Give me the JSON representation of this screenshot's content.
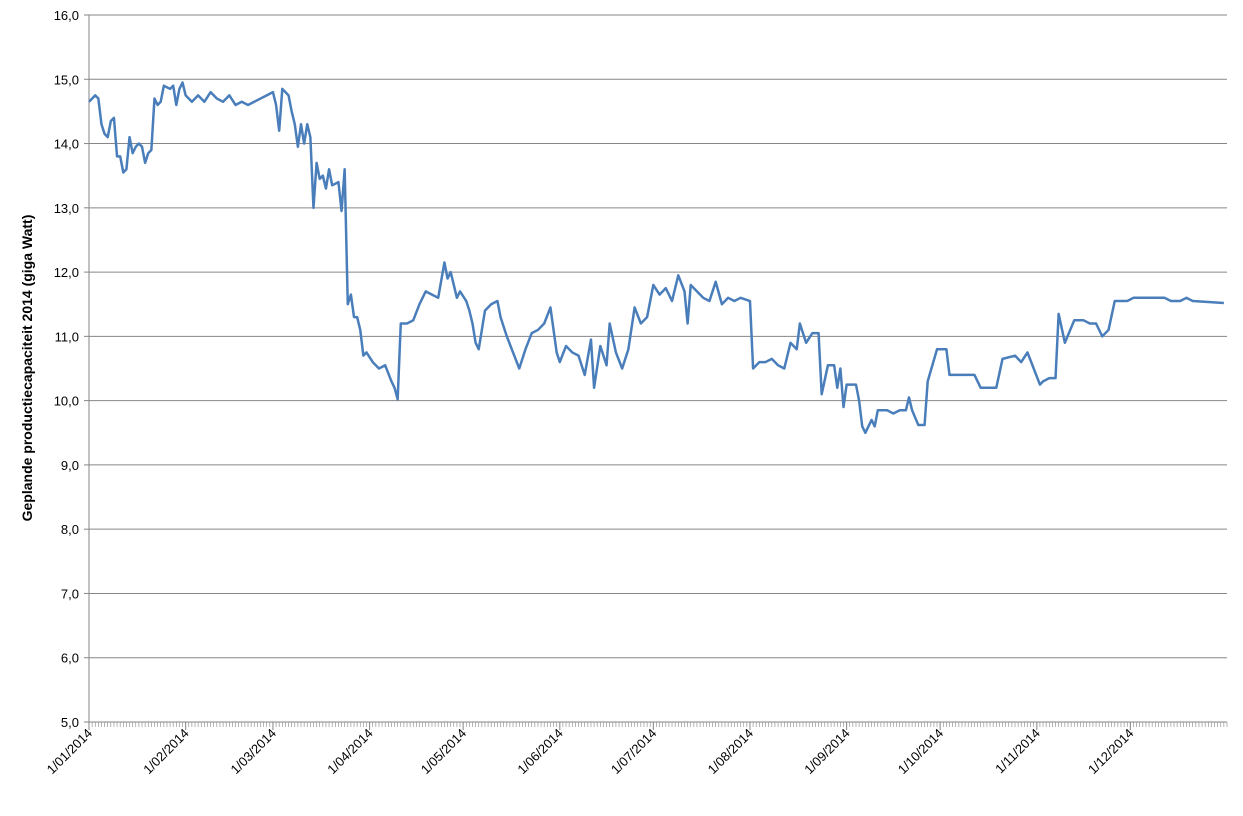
{
  "chart_data": {
    "type": "line",
    "y_label": "Geplande productiecapaciteit  2014 (giga Watt)",
    "xlim": [
      "1/01/2014",
      "1/01/2015"
    ],
    "xticks": [
      "1/01/2014",
      "1/02/2014",
      "1/03/2014",
      "1/04/2014",
      "1/05/2014",
      "1/06/2014",
      "1/07/2014",
      "1/08/2014",
      "1/09/2014",
      "1/10/2014",
      "1/11/2014",
      "1/12/2014"
    ],
    "ylim": [
      5,
      16
    ],
    "yticks": [
      {
        "value": 5,
        "label": "5,0"
      },
      {
        "value": 6,
        "label": "6,0"
      },
      {
        "value": 7,
        "label": "7,0"
      },
      {
        "value": 8,
        "label": "8,0"
      },
      {
        "value": 9,
        "label": "9,0"
      },
      {
        "value": 10,
        "label": "10,0"
      },
      {
        "value": 11,
        "label": "11,0"
      },
      {
        "value": 12,
        "label": "12,0"
      },
      {
        "value": 13,
        "label": "13,0"
      },
      {
        "value": 14,
        "label": "14,0"
      },
      {
        "value": 15,
        "label": "15,0"
      },
      {
        "value": 16,
        "label": "16,0"
      }
    ],
    "grid": true,
    "x": [
      "1/01/2014",
      "3/01/2014",
      "4/01/2014",
      "5/01/2014",
      "6/01/2014",
      "7/01/2014",
      "8/01/2014",
      "9/01/2014",
      "10/01/2014",
      "11/01/2014",
      "12/01/2014",
      "13/01/2014",
      "14/01/2014",
      "15/01/2014",
      "16/01/2014",
      "17/01/2014",
      "18/01/2014",
      "19/01/2014",
      "20/01/2014",
      "21/01/2014",
      "22/01/2014",
      "23/01/2014",
      "24/01/2014",
      "25/01/2014",
      "27/01/2014",
      "28/01/2014",
      "29/01/2014",
      "30/01/2014",
      "31/01/2014",
      "1/02/2014",
      "3/02/2014",
      "5/02/2014",
      "7/02/2014",
      "9/02/2014",
      "11/02/2014",
      "13/02/2014",
      "15/02/2014",
      "17/02/2014",
      "19/02/2014",
      "21/02/2014",
      "23/02/2014",
      "25/02/2014",
      "27/02/2014",
      "1/03/2014",
      "2/03/2014",
      "3/03/2014",
      "4/03/2014",
      "5/03/2014",
      "6/03/2014",
      "7/03/2014",
      "8/03/2014",
      "9/03/2014",
      "10/03/2014",
      "11/03/2014",
      "12/03/2014",
      "13/03/2014",
      "14/03/2014",
      "15/03/2014",
      "16/03/2014",
      "17/03/2014",
      "18/03/2014",
      "19/03/2014",
      "20/03/2014",
      "22/03/2014",
      "23/03/2014",
      "24/03/2014",
      "25/03/2014",
      "26/03/2014",
      "27/03/2014",
      "28/03/2014",
      "29/03/2014",
      "30/03/2014",
      "31/03/2014",
      "2/04/2014",
      "4/04/2014",
      "6/04/2014",
      "8/04/2014",
      "9/04/2014",
      "10/04/2014",
      "11/04/2014",
      "13/04/2014",
      "15/04/2014",
      "17/04/2014",
      "19/04/2014",
      "21/04/2014",
      "23/04/2014",
      "25/04/2014",
      "26/04/2014",
      "27/04/2014",
      "29/04/2014",
      "30/04/2014",
      "2/05/2014",
      "3/05/2014",
      "4/05/2014",
      "5/05/2014",
      "6/05/2014",
      "8/05/2014",
      "10/05/2014",
      "12/05/2014",
      "13/05/2014",
      "15/05/2014",
      "17/05/2014",
      "19/05/2014",
      "21/05/2014",
      "23/05/2014",
      "25/05/2014",
      "27/05/2014",
      "29/05/2014",
      "31/05/2014",
      "1/06/2014",
      "3/06/2014",
      "5/06/2014",
      "7/06/2014",
      "9/06/2014",
      "11/06/2014",
      "12/06/2014",
      "14/06/2014",
      "16/06/2014",
      "17/06/2014",
      "19/06/2014",
      "21/06/2014",
      "23/06/2014",
      "25/06/2014",
      "27/06/2014",
      "29/06/2014",
      "1/07/2014",
      "3/07/2014",
      "5/07/2014",
      "7/07/2014",
      "9/07/2014",
      "11/07/2014",
      "12/07/2014",
      "13/07/2014",
      "15/07/2014",
      "17/07/2014",
      "19/07/2014",
      "21/07/2014",
      "23/07/2014",
      "25/07/2014",
      "27/07/2014",
      "29/07/2014",
      "1/08/2014",
      "2/08/2014",
      "4/08/2014",
      "6/08/2014",
      "8/08/2014",
      "10/08/2014",
      "12/08/2014",
      "14/08/2014",
      "16/08/2014",
      "17/08/2014",
      "19/08/2014",
      "21/08/2014",
      "23/08/2014",
      "24/08/2014",
      "26/08/2014",
      "28/08/2014",
      "29/08/2014",
      "30/08/2014",
      "31/08/2014",
      "1/09/2014",
      "4/09/2014",
      "5/09/2014",
      "6/09/2014",
      "7/09/2014",
      "9/09/2014",
      "10/09/2014",
      "11/09/2014",
      "14/09/2014",
      "16/09/2014",
      "18/09/2014",
      "20/09/2014",
      "21/09/2014",
      "22/09/2014",
      "24/09/2014",
      "26/09/2014",
      "27/09/2014",
      "30/09/2014",
      "3/10/2014",
      "4/10/2014",
      "12/10/2014",
      "14/10/2014",
      "19/10/2014",
      "21/10/2014",
      "25/10/2014",
      "27/10/2014",
      "29/10/2014",
      "31/10/2014",
      "2/11/2014",
      "3/11/2014",
      "5/11/2014",
      "7/11/2014",
      "8/11/2014",
      "10/11/2014",
      "13/11/2014",
      "16/11/2014",
      "18/11/2014",
      "20/11/2014",
      "22/11/2014",
      "24/11/2014",
      "26/11/2014",
      "30/11/2014",
      "2/12/2014",
      "12/12/2014",
      "14/12/2014",
      "17/12/2014",
      "19/12/2014",
      "21/12/2014",
      "31/12/2014"
    ],
    "series": [
      {
        "color": "#4a7ebb",
        "values": [
          14.65,
          14.75,
          14.7,
          14.3,
          14.15,
          14.1,
          14.35,
          14.4,
          13.8,
          13.8,
          13.55,
          13.6,
          14.1,
          13.85,
          13.95,
          14.0,
          13.95,
          13.7,
          13.85,
          13.9,
          14.7,
          14.6,
          14.65,
          14.9,
          14.85,
          14.9,
          14.6,
          14.85,
          14.95,
          14.75,
          14.65,
          14.75,
          14.65,
          14.8,
          14.7,
          14.65,
          14.75,
          14.6,
          14.65,
          14.6,
          14.65,
          14.7,
          14.75,
          14.8,
          14.6,
          14.2,
          14.85,
          14.8,
          14.75,
          14.5,
          14.3,
          13.95,
          14.3,
          14.0,
          14.3,
          14.1,
          13.0,
          13.7,
          13.45,
          13.5,
          13.3,
          13.6,
          13.35,
          13.4,
          12.95,
          13.6,
          11.5,
          11.65,
          11.3,
          11.3,
          11.1,
          10.7,
          10.75,
          10.6,
          10.5,
          10.55,
          10.3,
          10.2,
          10.02,
          11.2,
          11.2,
          11.25,
          11.5,
          11.7,
          11.65,
          11.6,
          12.15,
          11.9,
          12.0,
          11.6,
          11.7,
          11.55,
          11.4,
          11.2,
          10.9,
          10.8,
          11.4,
          11.5,
          11.55,
          11.3,
          11.0,
          10.75,
          10.5,
          10.8,
          11.05,
          11.1,
          11.2,
          11.45,
          10.75,
          10.6,
          10.85,
          10.75,
          10.7,
          10.4,
          10.95,
          10.2,
          10.85,
          10.55,
          11.2,
          10.75,
          10.5,
          10.8,
          11.45,
          11.2,
          11.3,
          11.8,
          11.65,
          11.75,
          11.55,
          11.95,
          11.7,
          11.2,
          11.8,
          11.7,
          11.6,
          11.55,
          11.85,
          11.5,
          11.6,
          11.55,
          11.6,
          11.55,
          10.5,
          10.6,
          10.6,
          10.65,
          10.55,
          10.5,
          10.9,
          10.8,
          11.2,
          10.9,
          11.05,
          11.05,
          10.1,
          10.55,
          10.55,
          10.2,
          10.5,
          9.9,
          10.25,
          10.25,
          10.0,
          9.6,
          9.5,
          9.7,
          9.6,
          9.85,
          9.85,
          9.8,
          9.85,
          9.85,
          10.05,
          9.85,
          9.62,
          9.62,
          10.3,
          10.8,
          10.8,
          10.4,
          10.4,
          10.2,
          10.2,
          10.65,
          10.7,
          10.6,
          10.75,
          10.5,
          10.25,
          10.3,
          10.35,
          10.35,
          11.35,
          10.9,
          11.25,
          11.25,
          11.2,
          11.2,
          11.0,
          11.1,
          11.55,
          11.55,
          11.6,
          11.6,
          11.55,
          11.55,
          11.6,
          11.55,
          11.52
        ]
      }
    ]
  }
}
